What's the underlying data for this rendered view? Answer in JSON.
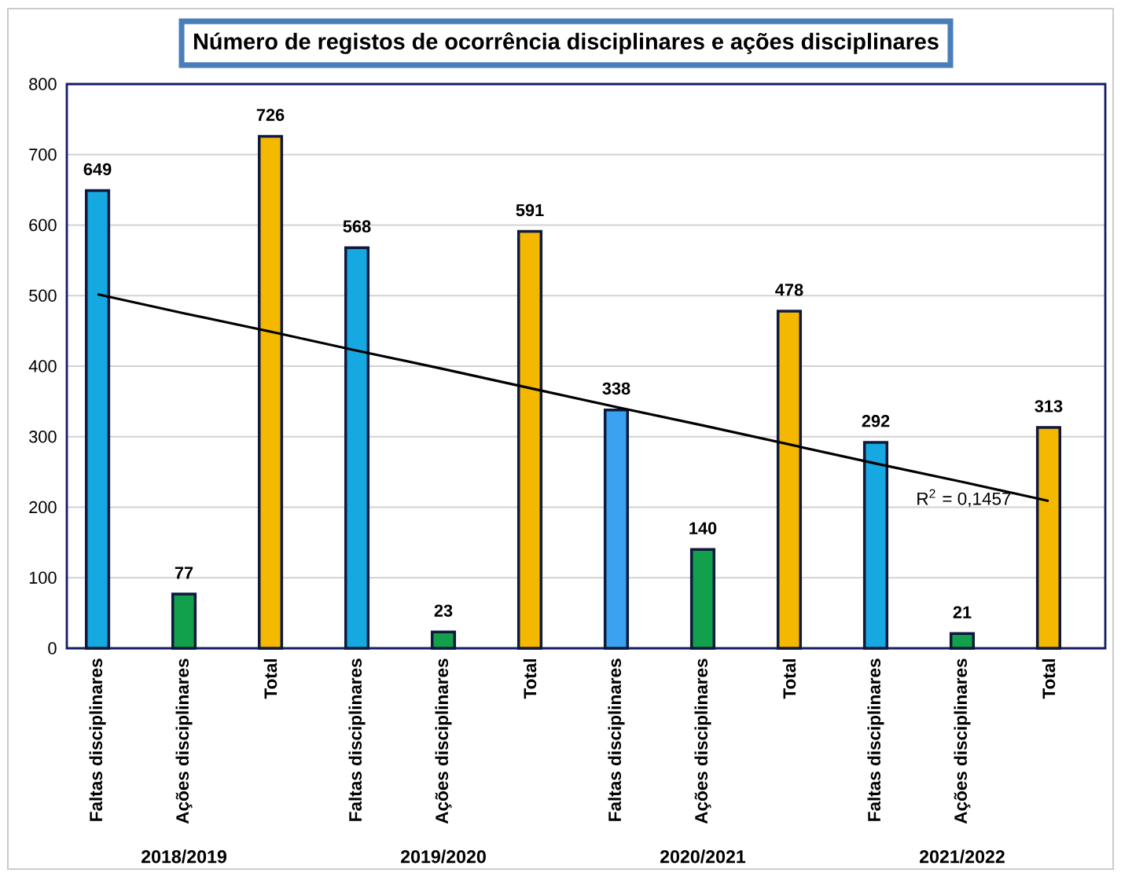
{
  "chart_data": {
    "type": "bar",
    "title": "Número de registos de ocorrência disciplinares e ações disciplinares",
    "categories": [
      "Faltas disciplinares",
      "Ações disciplinares",
      "Total",
      "Faltas disciplinares",
      "Ações disciplinares",
      "Total",
      "Faltas disciplinares",
      "Ações disciplinares",
      "Total",
      "Faltas disciplinares",
      "Ações disciplinares",
      "Total"
    ],
    "series": [
      {
        "values": [
          649,
          77,
          726,
          568,
          23,
          591,
          338,
          140,
          478,
          292,
          21,
          313
        ],
        "value_labels": [
          "649",
          "77",
          "726",
          "568",
          "23",
          "591",
          "338",
          "140",
          "478",
          "292",
          "21",
          "313"
        ],
        "colors": [
          "#16a8e0",
          "#12a04c",
          "#f5b800",
          "#16a8e0",
          "#12a04c",
          "#f5b800",
          "#3aa2f0",
          "#12a04c",
          "#f5b800",
          "#16a8e0",
          "#12a04c",
          "#f5b800"
        ]
      },
      {
        "type": "line",
        "name": "R$^{2}$ = 0,1457",
        "color": "#000000",
        "values": [
          502,
          475,
          449,
          422,
          396,
          369,
          342,
          316,
          289,
          262,
          236,
          209
        ]
      }
    ],
    "annotations": [
      "2018/2019",
      "2019/2020",
      "2020/2021",
      "2021/2022"
    ],
    "ylim": [
      0,
      800
    ],
    "yticks": [
      0,
      100,
      200,
      300,
      400,
      500,
      600,
      700,
      800
    ],
    "grid": "y"
  }
}
